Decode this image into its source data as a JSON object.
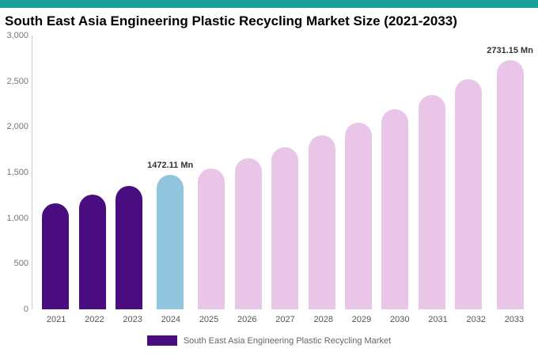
{
  "header": {
    "title": "South East Asia Engineering Plastic Recycling Market Size (2021-2033)",
    "accent_color": "#1aa09a"
  },
  "chart_data": {
    "type": "bar",
    "title": "South East Asia Engineering Plastic Recycling Market Size (2021-2033)",
    "categories": [
      "2021",
      "2022",
      "2023",
      "2024",
      "2025",
      "2026",
      "2027",
      "2028",
      "2029",
      "2030",
      "2031",
      "2032",
      "2033"
    ],
    "values": [
      1165,
      1260,
      1350,
      1472.11,
      1545,
      1660,
      1775,
      1905,
      2045,
      2195,
      2350,
      2520,
      2731.15
    ],
    "segments": [
      "historical",
      "historical",
      "historical",
      "current",
      "forecast",
      "forecast",
      "forecast",
      "forecast",
      "forecast",
      "forecast",
      "forecast",
      "forecast",
      "forecast"
    ],
    "bar_colors": {
      "historical": "#4a0d7f",
      "current": "#92c5de",
      "forecast": "#e9c6e8"
    },
    "data_labels": [
      {
        "index": 3,
        "text": "1472.11 Mn"
      },
      {
        "index": 12,
        "text": "2731.15 Mn"
      }
    ],
    "xlabel": "",
    "ylabel": "",
    "ylim": [
      0,
      3000
    ],
    "yticks": [
      0,
      500,
      1000,
      1500,
      2000,
      2500,
      3000
    ],
    "grid": false,
    "legend_position": "bottom",
    "legend": [
      {
        "label": "South East Asia Engineering Plastic Recycling Market",
        "color": "#4a0d7f"
      }
    ]
  }
}
